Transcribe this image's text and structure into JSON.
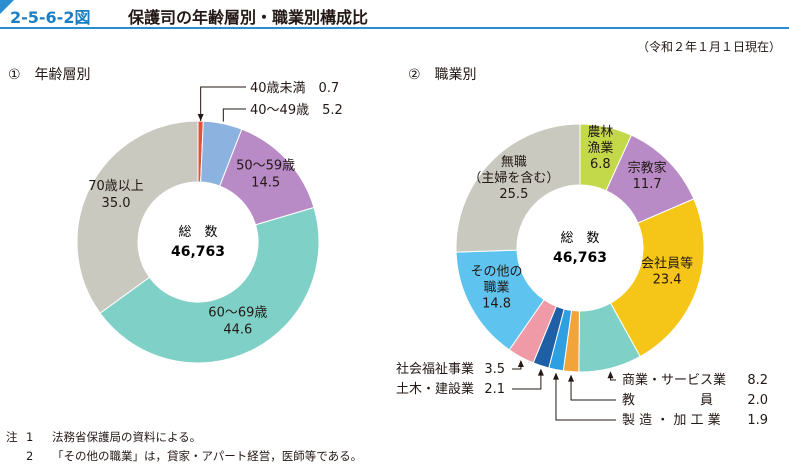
{
  "header": {
    "figure_number": "2-5-6-2図",
    "title": "保護司の年齢層別・職業別構成比"
  },
  "as_of": "（令和２年１月１日現在）",
  "chart_data": [
    {
      "type": "pie",
      "section_label": "①　年齢層別",
      "center_label": "総　数",
      "center_value": "46,763",
      "slices": [
        {
          "name": "40歳未満",
          "value": 0.7,
          "color": "#e2513a"
        },
        {
          "name": "40～49歳",
          "value": 5.2,
          "color": "#8cb3e0"
        },
        {
          "name": "50～59歳",
          "value": 14.5,
          "color": "#b88bc7"
        },
        {
          "name": "60～69歳",
          "value": 44.6,
          "color": "#7fd0c6"
        },
        {
          "name": "70歳以上",
          "value": 35.0,
          "color": "#c9c9c0"
        }
      ]
    },
    {
      "type": "pie",
      "section_label": "②　職業別",
      "center_label": "総　数",
      "center_value": "46,763",
      "slices": [
        {
          "name": "農林漁業",
          "label_lines": [
            "農林",
            "漁業"
          ],
          "value": 6.8,
          "color": "#c3d94a"
        },
        {
          "name": "宗教家",
          "value": 11.7,
          "color": "#b88bc7"
        },
        {
          "name": "会社員等",
          "value": 23.4,
          "color": "#f5c617"
        },
        {
          "name": "商業・サービス業",
          "value": 8.2,
          "color": "#7fd0c6"
        },
        {
          "name": "教員",
          "value": 2.0,
          "color": "#f2a33a"
        },
        {
          "name": "製造・加工業",
          "value": 1.9,
          "color": "#2e9fe0"
        },
        {
          "name": "土木・建設業",
          "value": 2.1,
          "color": "#1f5fa6"
        },
        {
          "name": "社会福祉事業",
          "value": 3.5,
          "color": "#ef9aa6"
        },
        {
          "name": "その他の職業",
          "label_lines": [
            "その他の",
            "職業"
          ],
          "value": 14.8,
          "color": "#5ec4ef"
        },
        {
          "name": "無職（主婦を含む）",
          "label_lines": [
            "無職",
            "（主婦を含む）"
          ],
          "value": 25.5,
          "color": "#c9c9c0"
        }
      ]
    }
  ],
  "notes": [
    {
      "lead": "注",
      "num": "1",
      "text": "法務省保護局の資料による。"
    },
    {
      "lead": "",
      "num": "2",
      "text": "「その他の職業」は，貸家・アパート経営，医師等である。"
    }
  ]
}
